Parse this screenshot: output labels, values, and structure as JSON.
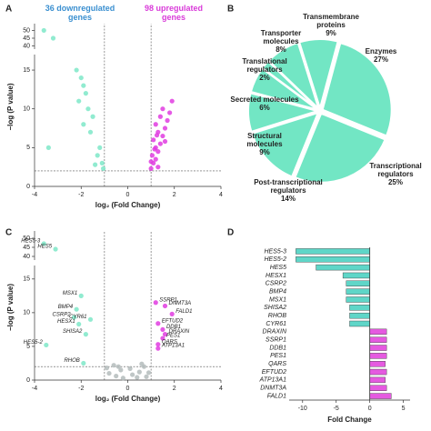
{
  "chart_data": [
    {
      "type": "scatter",
      "panel": "A",
      "annotations": [
        "36 downregulated genes",
        "98 upregulated genes"
      ],
      "annotation_colors": [
        "#3a8fd0",
        "#d93ad9"
      ],
      "xlabel": "log₂ (Fold Change)",
      "ylabel": "−log (P value)",
      "xlim": [
        -4,
        4
      ],
      "xticks": [
        -4,
        -2,
        0,
        2,
        4
      ],
      "ylim": [
        0,
        52
      ],
      "y_break": [
        17,
        38
      ],
      "yticks": [
        0,
        5,
        10,
        15,
        40,
        45,
        50
      ],
      "cutoff_x": [
        -1,
        1
      ],
      "cutoff_y": 2,
      "series": [
        {
          "color": "#7ee8c8",
          "x": [
            -3.6,
            -3.2,
            -3.4,
            -2.2,
            -2.0,
            -1.9,
            -1.8,
            -2.1,
            -1.7,
            -1.5,
            -1.9,
            -1.6,
            -1.2,
            -1.3,
            -1.1,
            -1.4,
            -1.05
          ],
          "y": [
            50,
            45,
            5,
            15,
            14,
            13,
            12,
            11,
            10,
            9,
            8,
            7,
            5,
            4,
            3,
            2.8,
            2.3
          ]
        },
        {
          "color": "#e03ce0",
          "x": [
            1.0,
            1.1,
            1.2,
            1.05,
            1.3,
            1.2,
            1.4,
            1.1,
            1.5,
            1.3,
            1.6,
            1.2,
            1.7,
            1.4,
            1.8,
            1.5,
            1.9,
            1.3,
            1.0,
            1.15,
            1.6,
            1.25
          ],
          "y": [
            2.3,
            3,
            3.5,
            4,
            4.5,
            5,
            5.5,
            6,
            6.5,
            7,
            7.5,
            8,
            8.5,
            9,
            9.5,
            10,
            11,
            2.5,
            3.2,
            4.8,
            5.8,
            6.6
          ]
        }
      ]
    },
    {
      "type": "pie",
      "panel": "B",
      "color": "#72e6c4",
      "categories": [
        "Enzymes",
        "Transcriptional regulators",
        "Post-transcriptional regulators",
        "Structural molecules",
        "Secreted molecules",
        "Translational regulators",
        "Transporter molecules",
        "Transmembrane proteins"
      ],
      "values": [
        27,
        25,
        14,
        9,
        6,
        2,
        8,
        9
      ],
      "value_labels": [
        "27%",
        "25%",
        "14%",
        "9%",
        "6%",
        "2%",
        "8%",
        "9%"
      ]
    },
    {
      "type": "scatter",
      "panel": "C",
      "xlabel": "log₂ (Fold Change)",
      "ylabel": "−log (P value)",
      "xlim": [
        -4,
        4
      ],
      "xticks": [
        -4,
        -2,
        0,
        2,
        4
      ],
      "ylim": [
        0,
        52
      ],
      "y_break": [
        17,
        38
      ],
      "yticks": [
        0,
        5,
        10,
        15,
        40,
        45,
        50
      ],
      "cutoff_x": [
        -1,
        1
      ],
      "cutoff_y": 2,
      "series": [
        {
          "color": "#b4bcbc",
          "x": [
            -0.8,
            -0.5,
            -0.3,
            0.2,
            0.5,
            0.7,
            -0.6,
            0.4,
            -0.9,
            0.9,
            0.1,
            -0.2,
            0.6,
            0.8,
            -0.4
          ],
          "y": [
            1.0,
            0.6,
            1.5,
            0.8,
            1.2,
            2.0,
            2.2,
            0.4,
            1.8,
            1.1,
            1.7,
            0.3,
            2.4,
            0.5,
            2.0
          ]
        },
        {
          "color": "#7ee8c8",
          "labels": [
            "HES5-3",
            "HES5",
            "MSX1",
            "BMP4",
            "CSRP2",
            "CYR61",
            "HESX1",
            "SHISA2",
            "HES5-2",
            "RHOB"
          ],
          "x": [
            -3.6,
            -3.1,
            -2.0,
            -2.2,
            -2.3,
            -1.6,
            -2.1,
            -1.8,
            -3.5,
            -1.9
          ],
          "y": [
            47,
            44,
            12.5,
            10.5,
            9.3,
            9,
            8.3,
            6.8,
            5.2,
            2.5
          ]
        },
        {
          "color": "#e03ce0",
          "labels": [
            "SSRP1",
            "DNMT3A",
            "FALD1",
            "EFTUD2",
            "DDB1",
            "DRAXIN",
            "PES1",
            "QARS",
            "ATP13A1"
          ],
          "x": [
            1.2,
            1.6,
            1.9,
            1.3,
            1.5,
            1.6,
            1.5,
            1.3,
            1.3
          ],
          "y": [
            11.5,
            11,
            9.8,
            8.4,
            7.5,
            6.8,
            6.2,
            5.3,
            4.7
          ]
        }
      ]
    },
    {
      "type": "hbar",
      "panel": "D",
      "xlabel": "Fold Change",
      "xlim": [
        -12,
        6
      ],
      "xticks": [
        -10,
        -5,
        0,
        5
      ],
      "categories": [
        "HES5-3",
        "HES5-2",
        "HES5",
        "HESX1",
        "CSRP2",
        "BMP4",
        "MSX1",
        "SHISA2",
        "RHOB",
        "CYR61",
        "DRAXIN",
        "SSRP1",
        "DDB1",
        "PES1",
        "QARS",
        "EFTUD2",
        "ATP13A1",
        "DNMT3A",
        "FALD1"
      ],
      "values": [
        -11,
        -11,
        -8,
        -4,
        -3.5,
        -3.5,
        -3.5,
        -3,
        -3,
        -3,
        2.5,
        2.5,
        2.5,
        2.5,
        2.3,
        2.5,
        2.3,
        2.5,
        3.2
      ],
      "colors": [
        "#5fd6c8",
        "#5fd6c8",
        "#5fd6c8",
        "#5fd6c8",
        "#5fd6c8",
        "#5fd6c8",
        "#5fd6c8",
        "#5fd6c8",
        "#5fd6c8",
        "#5fd6c8",
        "#e55ae0",
        "#e55ae0",
        "#e55ae0",
        "#e55ae0",
        "#e55ae0",
        "#e55ae0",
        "#e55ae0",
        "#e55ae0",
        "#e55ae0"
      ]
    }
  ]
}
